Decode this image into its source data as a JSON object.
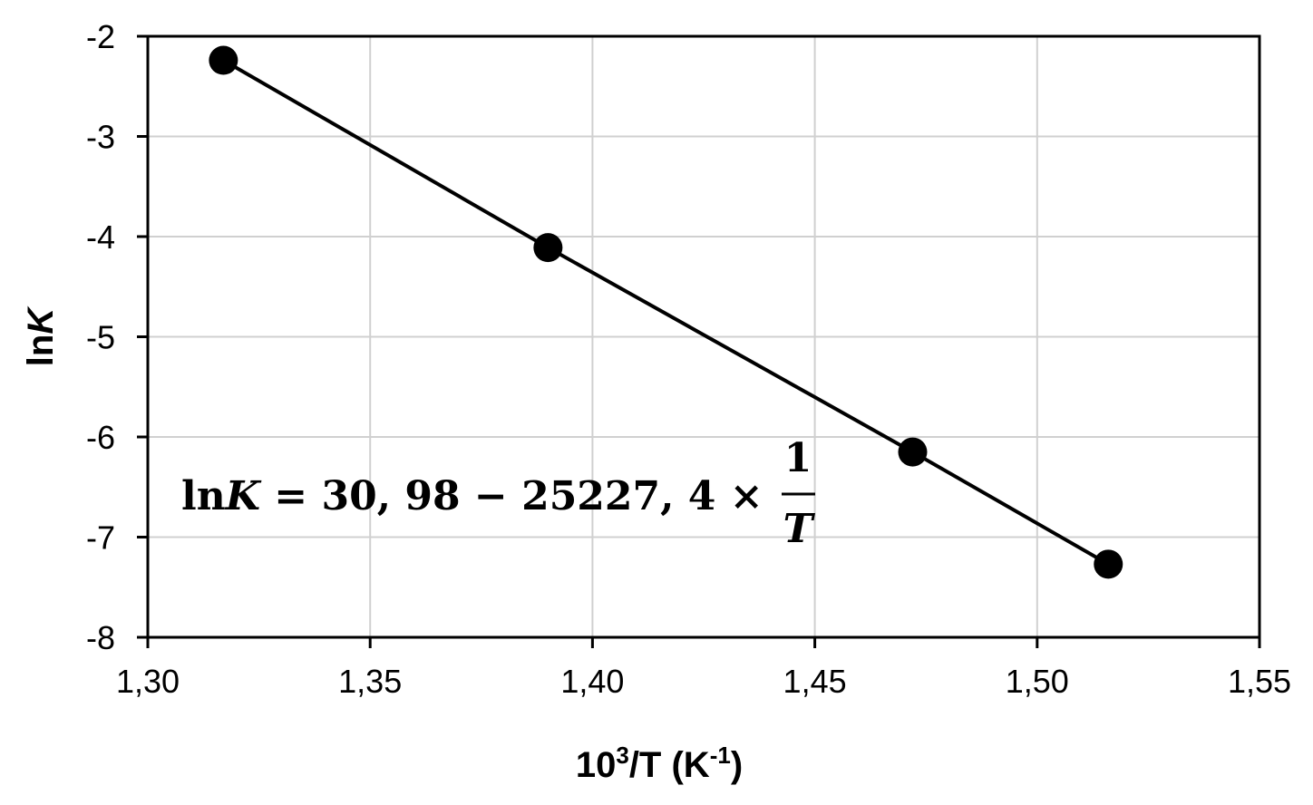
{
  "chart_data": {
    "type": "scatter",
    "xlabel_base": "10",
    "xlabel_exp": "3",
    "xlabel_mid": "/T (K",
    "xlabel_exp2": "-1",
    "xlabel_end": ")",
    "ylabel_pre": "ln",
    "ylabel_var": "K",
    "xlim": [
      1.3,
      1.55
    ],
    "ylim": [
      -8,
      -2
    ],
    "xticks": [
      "1,30",
      "1,35",
      "1,40",
      "1,45",
      "1,50",
      "1,55"
    ],
    "yticks": [
      "-2",
      "-3",
      "-4",
      "-5",
      "-6",
      "-7",
      "-8"
    ],
    "grid": true,
    "series": [
      {
        "x": [
          1.317,
          1.39,
          1.472,
          1.516
        ],
        "y": [
          -2.24,
          -4.11,
          -6.15,
          -7.27
        ],
        "marker": "circle",
        "line": true,
        "color": "#000000"
      }
    ],
    "annotation": {
      "pre": "ln",
      "var": "K",
      "rest": " = 30, 98 − 25227, 4 × ",
      "num": "1",
      "den": "T"
    }
  }
}
